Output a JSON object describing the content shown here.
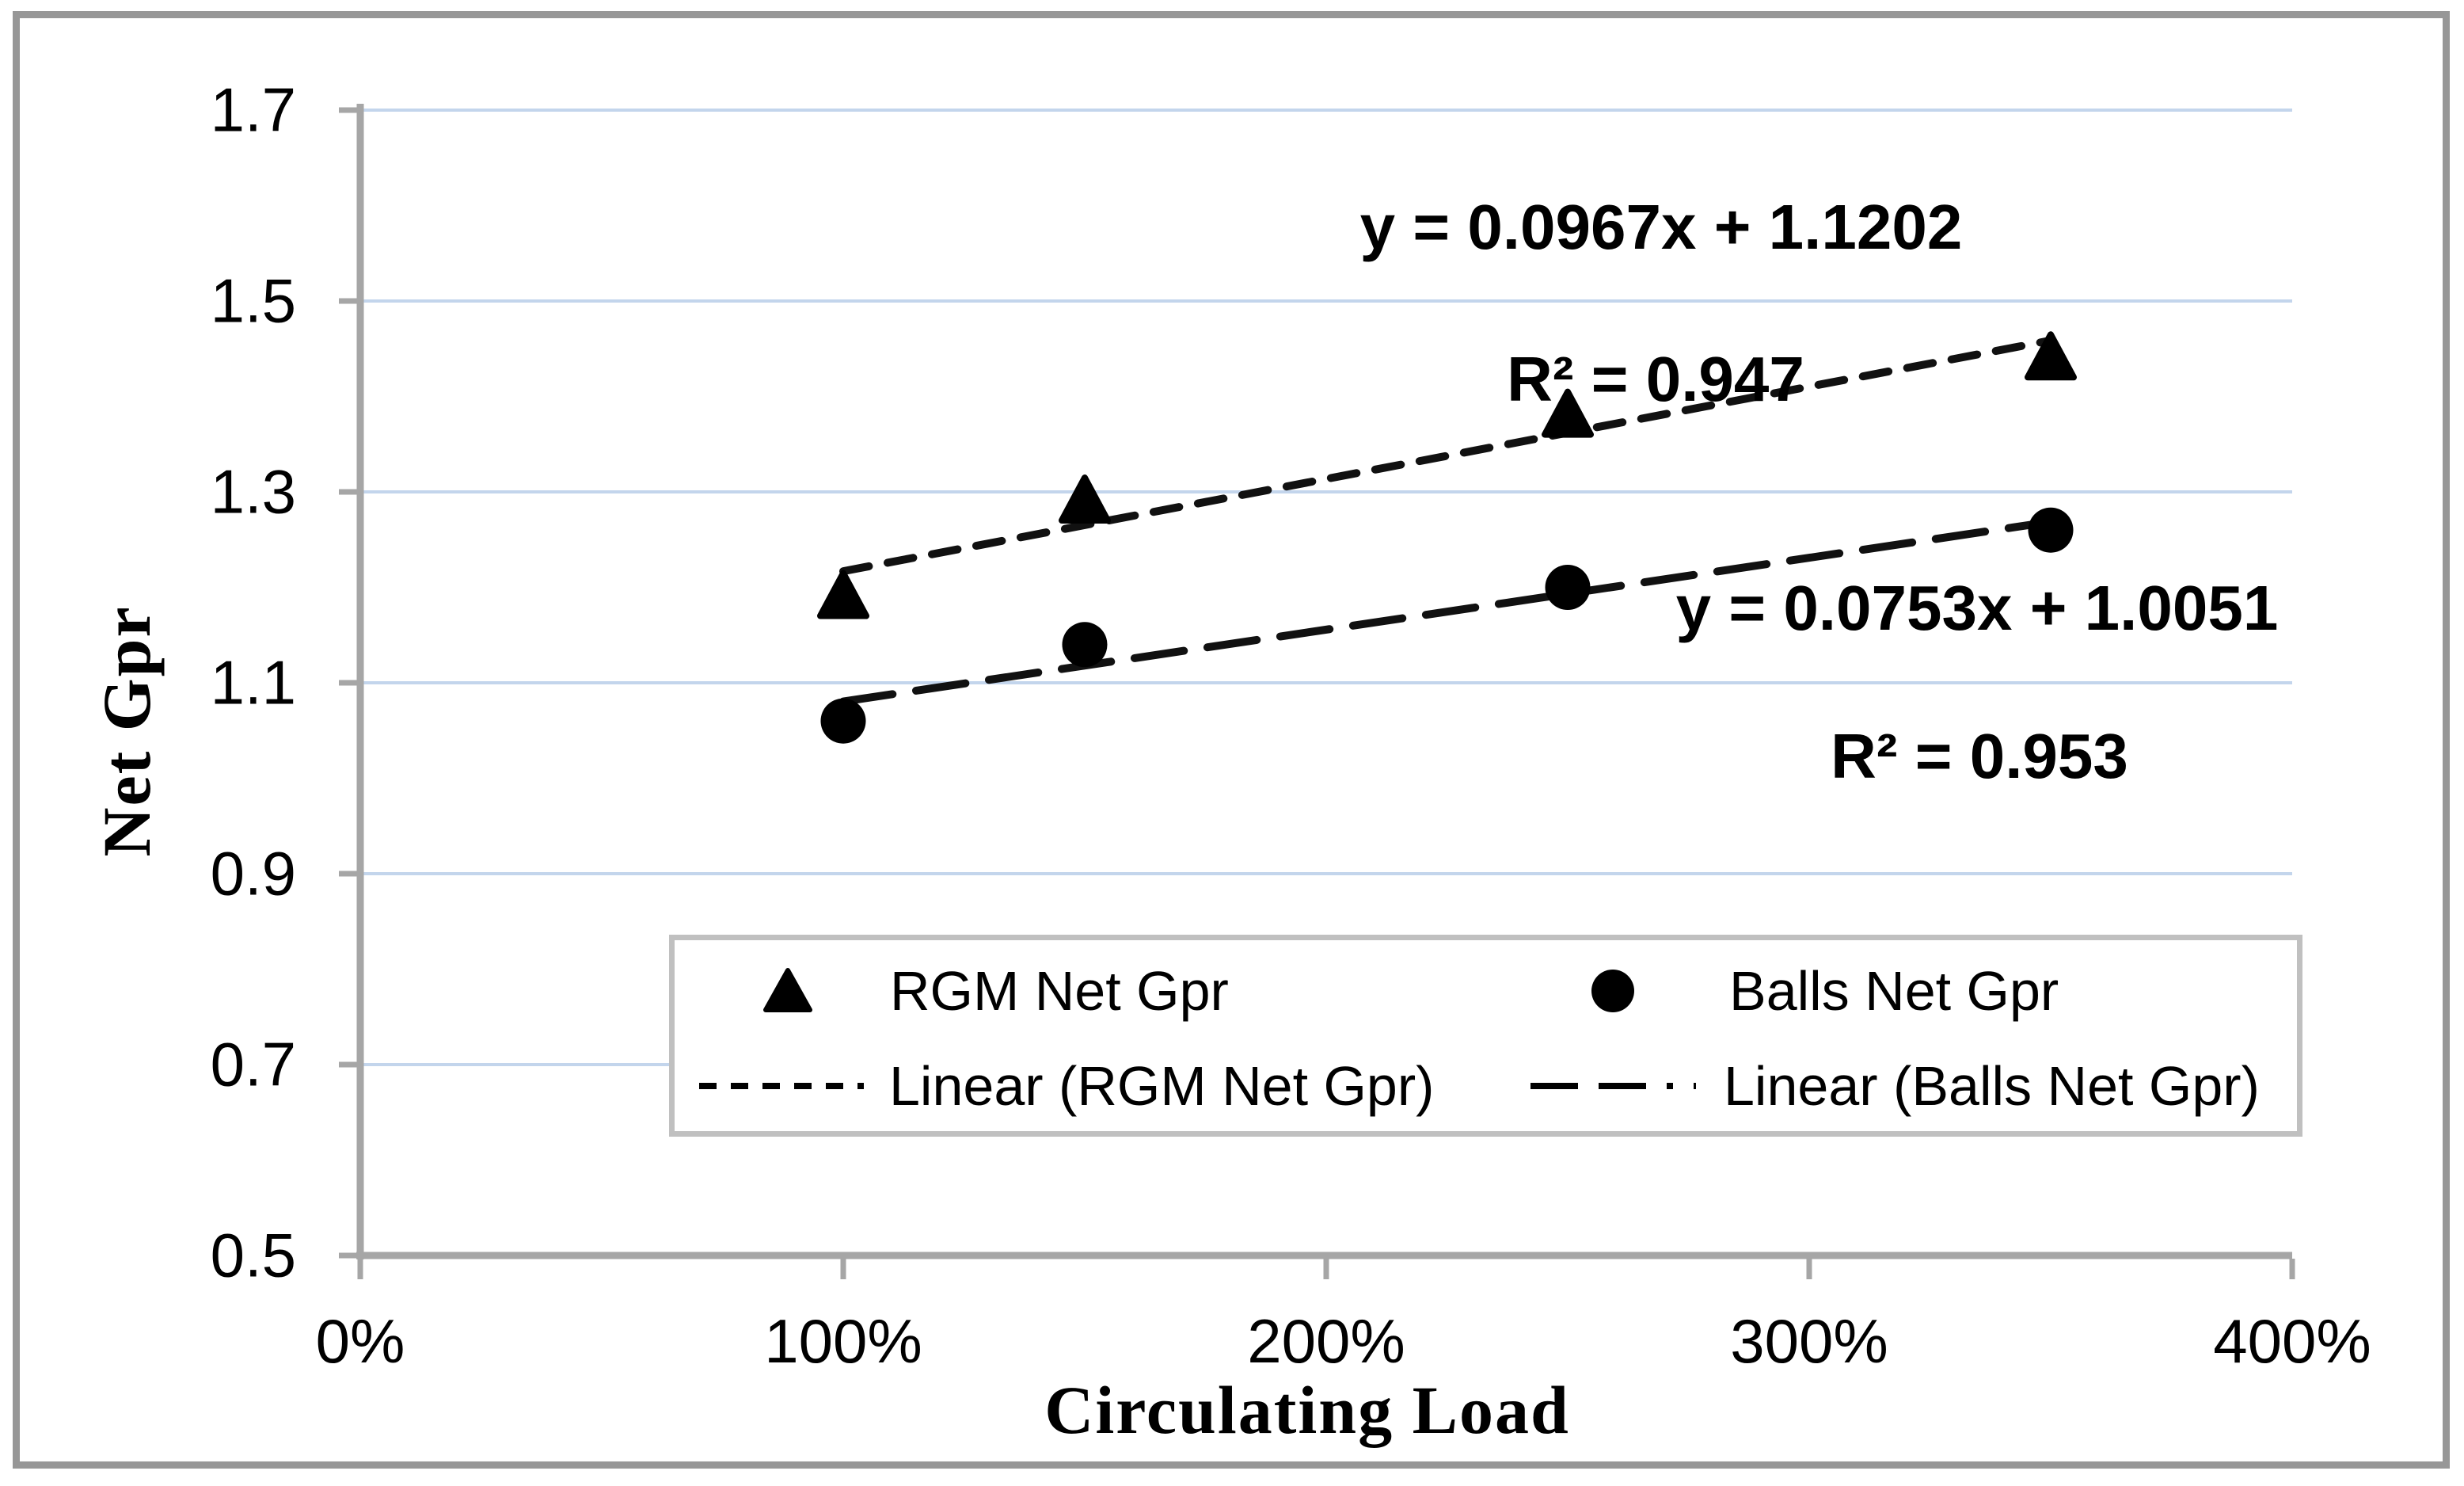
{
  "colors": {
    "background": "#ffffff",
    "marker": "#000000",
    "trendline": "#111111",
    "gridline": "#c3d5ec",
    "axis": "#a6a6a6",
    "frame_border": "#979797",
    "legend_border": "#c0c0c0",
    "text": "#000000"
  },
  "axis_titles": {
    "y": "Net Gpr",
    "x": "Circulating Load"
  },
  "chart_data": {
    "type": "scatter",
    "title": "",
    "xlabel": "Circulating Load",
    "ylabel": "Net Gpr",
    "xlim_percent": [
      0,
      400
    ],
    "ylim": [
      0.5,
      1.7
    ],
    "grid": true,
    "legend_position": "bottom-center-inside",
    "x_tick_values": [
      0,
      100,
      200,
      300,
      400
    ],
    "x_tick_labels": [
      "0%",
      "100%",
      "200%",
      "300%",
      "400%"
    ],
    "y_tick_values": [
      1.7,
      1.5,
      1.3,
      1.1,
      0.9,
      0.7,
      0.5
    ],
    "y_tick_labels": [
      "1.7",
      "1.5",
      "1.3",
      "1.1",
      "0.9",
      "0.7",
      "0.5"
    ],
    "series": [
      {
        "name": "RGM Net Gpr",
        "marker": "triangle",
        "x_percent": [
          100,
          150,
          250,
          350
        ],
        "y": [
          1.19,
          1.29,
          1.38,
          1.44
        ],
        "trendline": {
          "label": "Linear (RGM Net Gpr)",
          "equation": "y = 0.0967x + 1.1202",
          "r_squared": "R² = 0.947",
          "slope_per_100pct": 0.0967,
          "intercept": 1.1202,
          "dash": "short",
          "x_range_percent": [
            100,
            350
          ]
        }
      },
      {
        "name": "Balls Net Gpr",
        "marker": "circle",
        "x_percent": [
          100,
          150,
          250,
          350
        ],
        "y": [
          1.06,
          1.14,
          1.2,
          1.26
        ],
        "trendline": {
          "label": "Linear (Balls Net Gpr)",
          "equation": "y = 0.0753x + 1.0051",
          "r_squared": "R² = 0.953",
          "slope_per_100pct": 0.0753,
          "intercept": 1.0051,
          "dash": "long",
          "x_range_percent": [
            100,
            350
          ]
        }
      }
    ]
  }
}
